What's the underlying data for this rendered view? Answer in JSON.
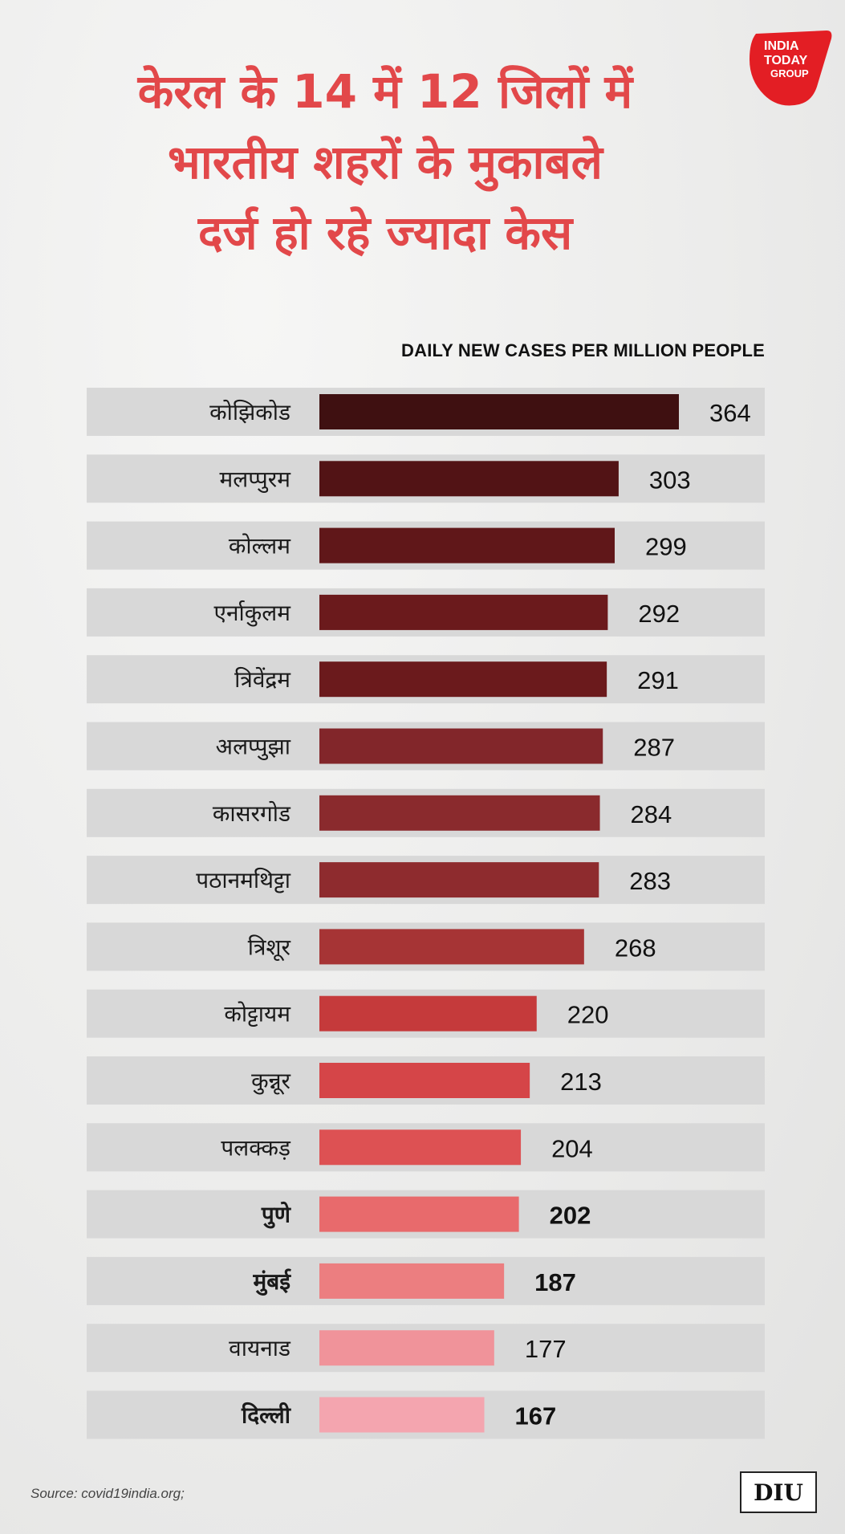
{
  "header": {
    "title_lines": [
      "केरल के 14 में 12 जिलों में",
      "भारतीय शहरों के मुकाबले",
      "दर्ज हो रहे ज्यादा केस"
    ],
    "logo_text": [
      "INDIA",
      "TODAY",
      "GROUP"
    ],
    "logo_color": "#e31e24"
  },
  "chart_data": {
    "type": "bar",
    "orientation": "horizontal",
    "title": "DAILY NEW CASES PER MILLION PEOPLE",
    "categories": [
      "कोझिकोड",
      "मलप्पुरम",
      "कोल्लम",
      "एर्नाकुलम",
      "त्रिवेंद्रम",
      "अलप्पुझा",
      "कासरगोड",
      "पठानमथिट्टा",
      "त्रिशूर",
      "कोट्टायम",
      "कुन्नूर",
      "पलक्कड़",
      "पुणे",
      "मुंबई",
      "वायनाड",
      "दिल्ली"
    ],
    "values": [
      364,
      303,
      299,
      292,
      291,
      287,
      284,
      283,
      268,
      220,
      213,
      204,
      202,
      187,
      177,
      167
    ],
    "bold_categories": [
      "पुणे",
      "मुंबई",
      "दिल्ली"
    ],
    "bar_colors": [
      "#3f1011",
      "#521315",
      "#601719",
      "#6b1a1c",
      "#6b1a1c",
      "#82262a",
      "#8a2a2d",
      "#8e2b2e",
      "#a63435",
      "#c53a3b",
      "#d54548",
      "#dd5153",
      "#e86a6c",
      "#ec7e80",
      "#f0939a",
      "#f4a5af"
    ],
    "xlim": [
      0,
      364
    ]
  },
  "footer": {
    "source": "Source: covid19india.org;",
    "diu_logo_text": "DIU"
  }
}
